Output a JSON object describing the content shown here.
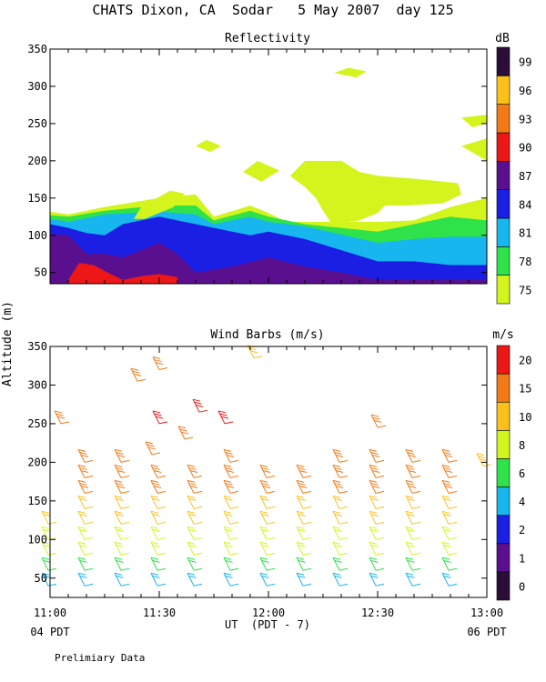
{
  "page_title": "CHATS Dixon, CA  Sodar   5 May 2007  day 125",
  "footer_note": "Prelimiary Data",
  "x_axis": {
    "label": "UT  (PDT - 7)",
    "range_minutes": [
      660,
      780
    ],
    "ticks": [
      {
        "minutes": 660,
        "label": "11:00"
      },
      {
        "minutes": 690,
        "label": "11:30"
      },
      {
        "minutes": 720,
        "label": "12:00"
      },
      {
        "minutes": 750,
        "label": "12:30"
      },
      {
        "minutes": 780,
        "label": "13:00"
      }
    ],
    "date_left": "04 PDT",
    "date_right": "06 PDT"
  },
  "y_axis_label": "Altitude (m)",
  "colors": {
    "c75": "#d4f41e",
    "c78": "#2fe24a",
    "c81": "#17b6ef",
    "c84": "#1b1ee3",
    "c87": "#5a0f8e",
    "c90": "#ed1717",
    "c93": "#f27a17",
    "c96": "#fbc11a",
    "c99": "#2c0d3a",
    "w0": "#2c0d3a",
    "w1": "#5a0f8e",
    "w2": "#1b1ee3",
    "w4": "#17b6ef",
    "w6": "#2fe24a",
    "w8": "#d4f41e",
    "w10": "#fbc11a",
    "w15": "#f27a17",
    "w20": "#ed1717"
  },
  "chart_data": [
    {
      "type": "heatmap",
      "title": "Reflectivity",
      "ylim": [
        35,
        350
      ],
      "yticks": [
        50,
        100,
        150,
        200,
        250,
        300,
        350
      ],
      "colorbar": {
        "unit": "dB",
        "levels": [
          75,
          78,
          81,
          84,
          87,
          90,
          93,
          96,
          99
        ],
        "level_colors": [
          "c75",
          "c78",
          "c81",
          "c84",
          "c87",
          "c90",
          "c93",
          "c96",
          "c99"
        ]
      },
      "contour_bands": [
        {
          "level": 75,
          "color": "c75",
          "x": [
            660,
            665,
            675,
            690,
            700,
            705,
            715,
            720,
            725,
            730,
            750,
            760,
            770,
            780
          ],
          "y": [
            132,
            128,
            138,
            150,
            155,
            125,
            140,
            130,
            118,
            118,
            118,
            120,
            138,
            150
          ]
        },
        {
          "level": 78,
          "color": "c78",
          "x": [
            660,
            665,
            675,
            690,
            700,
            705,
            715,
            720,
            730,
            750,
            770,
            780
          ],
          "y": [
            127,
            125,
            133,
            140,
            140,
            120,
            133,
            125,
            115,
            105,
            125,
            120
          ]
        },
        {
          "level": 81,
          "color": "c81",
          "x": [
            660,
            665,
            675,
            690,
            700,
            705,
            715,
            720,
            730,
            750,
            760,
            770,
            780
          ],
          "y": [
            122,
            118,
            128,
            132,
            128,
            115,
            125,
            118,
            112,
            90,
            95,
            98,
            98
          ]
        },
        {
          "level": 84,
          "color": "c84",
          "x": [
            660,
            665,
            670,
            675,
            680,
            690,
            700,
            705,
            715,
            720,
            730,
            740,
            750,
            760,
            770,
            780
          ],
          "y": [
            115,
            110,
            103,
            100,
            115,
            125,
            115,
            110,
            100,
            105,
            95,
            80,
            65,
            65,
            60,
            60
          ]
        },
        {
          "level": 87,
          "color": "c87",
          "x": [
            660,
            665,
            670,
            675,
            680,
            685,
            690,
            695,
            700,
            710,
            720,
            730,
            740,
            750,
            760,
            770,
            780
          ],
          "y": [
            102,
            100,
            75,
            75,
            70,
            80,
            90,
            75,
            50,
            58,
            70,
            58,
            50,
            40,
            40,
            40,
            40
          ]
        },
        {
          "level": 90,
          "color": "c90",
          "x": [
            665,
            668,
            672,
            675,
            680,
            685,
            690,
            695
          ],
          "y": [
            40,
            63,
            60,
            52,
            40,
            45,
            48,
            44
          ]
        }
      ],
      "patches": [
        {
          "color": "c75",
          "x": [
            683,
            685,
            693,
            697,
            694,
            686
          ],
          "y": [
            122,
            138,
            160,
            156,
            138,
            122
          ]
        },
        {
          "color": "c75",
          "x": [
            700,
            703,
            707,
            704
          ],
          "y": [
            220,
            228,
            220,
            212
          ]
        },
        {
          "color": "c75",
          "x": [
            713,
            717,
            723,
            718
          ],
          "y": [
            185,
            200,
            187,
            172
          ]
        },
        {
          "color": "c75",
          "x": [
            738,
            742,
            747,
            744
          ],
          "y": [
            318,
            325,
            320,
            312
          ]
        },
        {
          "color": "c75",
          "x": [
            773,
            780,
            780,
            776
          ],
          "y": [
            258,
            262,
            250,
            245
          ]
        },
        {
          "color": "c75",
          "x": [
            773,
            780,
            780
          ],
          "y": [
            220,
            230,
            200
          ]
        },
        {
          "color": "c75",
          "x": [
            726,
            730,
            740,
            745,
            750,
            762,
            772,
            773,
            768,
            758,
            752,
            750,
            745,
            742,
            737,
            735,
            733,
            730,
            728
          ],
          "y": [
            180,
            200,
            200,
            185,
            180,
            175,
            170,
            155,
            143,
            140,
            140,
            130,
            120,
            118,
            118,
            133,
            150,
            165,
            172
          ]
        }
      ]
    },
    {
      "type": "scatter",
      "title": "Wind Barbs (m/s)",
      "ylim": [
        25,
        350
      ],
      "yticks": [
        50,
        100,
        150,
        200,
        250,
        300,
        350
      ],
      "colorbar": {
        "unit": "m/s",
        "levels": [
          0,
          1,
          2,
          4,
          6,
          8,
          10,
          15,
          20
        ],
        "level_colors": [
          "w0",
          "w1",
          "w2",
          "w4",
          "w6",
          "w8",
          "w10",
          "w15",
          "w20"
        ]
      },
      "x_minutes": [
        660,
        670,
        680,
        690,
        700,
        710,
        720,
        730,
        740,
        750,
        760,
        770
      ],
      "barb_columns": [
        {
          "x": 660,
          "alts": [
            40,
            60,
            80,
            100,
            120
          ]
        },
        {
          "x": 670,
          "alts": [
            40,
            60,
            80,
            100,
            120,
            140,
            160,
            180,
            200
          ]
        },
        {
          "x": 680,
          "alts": [
            40,
            60,
            80,
            100,
            120,
            140,
            160,
            180,
            200
          ]
        },
        {
          "x": 690,
          "alts": [
            40,
            60,
            80,
            100,
            120,
            140,
            160,
            180
          ]
        },
        {
          "x": 700,
          "alts": [
            40,
            60,
            80,
            100,
            120,
            140,
            160,
            180
          ]
        },
        {
          "x": 710,
          "alts": [
            40,
            60,
            80,
            100,
            120,
            140,
            160,
            180,
            200
          ]
        },
        {
          "x": 720,
          "alts": [
            40,
            60,
            80,
            100,
            120,
            140,
            160,
            180
          ]
        },
        {
          "x": 730,
          "alts": [
            40,
            60,
            80,
            100,
            120,
            140,
            160,
            180
          ]
        },
        {
          "x": 740,
          "alts": [
            40,
            60,
            80,
            100,
            120,
            140,
            160,
            180,
            200
          ]
        },
        {
          "x": 750,
          "alts": [
            40,
            60,
            80,
            100,
            120,
            140,
            160,
            180,
            200
          ]
        },
        {
          "x": 760,
          "alts": [
            40,
            60,
            80,
            100,
            120,
            140,
            160,
            180,
            200
          ]
        },
        {
          "x": 770,
          "alts": [
            40,
            60,
            80,
            100,
            120,
            140,
            160,
            180,
            200
          ]
        }
      ],
      "extra_barbs": [
        {
          "x": 663,
          "alt": 250,
          "color": "w15"
        },
        {
          "x": 684,
          "alt": 305,
          "color": "w15"
        },
        {
          "x": 690,
          "alt": 320,
          "color": "w15"
        },
        {
          "x": 690,
          "alt": 250,
          "color": "w20"
        },
        {
          "x": 688,
          "alt": 210,
          "color": "w15"
        },
        {
          "x": 697,
          "alt": 230,
          "color": "w15"
        },
        {
          "x": 701,
          "alt": 265,
          "color": "w20"
        },
        {
          "x": 708,
          "alt": 250,
          "color": "w20"
        },
        {
          "x": 716,
          "alt": 335,
          "color": "w10"
        },
        {
          "x": 750,
          "alt": 245,
          "color": "w15"
        },
        {
          "x": 779,
          "alt": 195,
          "color": "w10"
        }
      ]
    }
  ]
}
